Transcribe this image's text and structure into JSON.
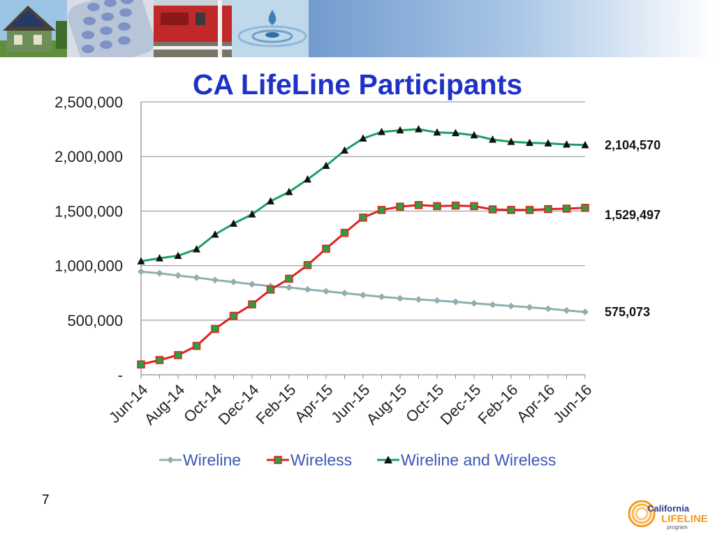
{
  "slide": {
    "page_number": "7"
  },
  "banner": {
    "photos": [
      "house-solar-photo",
      "phone-keypad-photo",
      "train-photo",
      "water-drop-photo"
    ]
  },
  "logo": {
    "line1": "California",
    "line2": "LIFELINE",
    "line3": "program"
  },
  "chart_data": {
    "type": "line",
    "title": "CA LifeLine Participants",
    "xlabel": "",
    "ylabel": "",
    "x": [
      "Jun-14",
      "Jul-14",
      "Aug-14",
      "Sep-14",
      "Oct-14",
      "Nov-14",
      "Dec-14",
      "Jan-15",
      "Feb-15",
      "Mar-15",
      "Apr-15",
      "May-15",
      "Jun-15",
      "Jul-15",
      "Aug-15",
      "Sep-15",
      "Oct-15",
      "Nov-15",
      "Dec-15",
      "Jan-16",
      "Feb-16",
      "Mar-16",
      "Apr-16",
      "May-16",
      "Jun-16"
    ],
    "x_tick_labels": [
      "Jun-14",
      "Aug-14",
      "Oct-14",
      "Dec-14",
      "Feb-15",
      "Apr-15",
      "Jun-15",
      "Aug-15",
      "Oct-15",
      "Dec-15",
      "Feb-16",
      "Apr-16",
      "Jun-16"
    ],
    "ylim": [
      0,
      2500000
    ],
    "y_ticks": [
      0,
      500000,
      1000000,
      1500000,
      2000000,
      2500000
    ],
    "y_tick_labels": [
      "-",
      "500,000",
      "1,000,000",
      "1,500,000",
      "2,000,000",
      "2,500,000"
    ],
    "grid": true,
    "legend_position": "bottom",
    "series": [
      {
        "name": "Wireline",
        "color": "#8fb0b0",
        "marker": "diamond",
        "values": [
          945000,
          930000,
          910000,
          890000,
          868000,
          850000,
          830000,
          812000,
          800000,
          782000,
          765000,
          748000,
          730000,
          715000,
          700000,
          690000,
          680000,
          668000,
          655000,
          642000,
          630000,
          618000,
          605000,
          590000,
          575073
        ],
        "end_label": "575,073"
      },
      {
        "name": "Wireless",
        "color": "#e02020",
        "marker": "square",
        "values": [
          95000,
          135000,
          180000,
          265000,
          420000,
          540000,
          645000,
          780000,
          880000,
          1005000,
          1155000,
          1300000,
          1440000,
          1510000,
          1540000,
          1555000,
          1545000,
          1550000,
          1545000,
          1515000,
          1510000,
          1510000,
          1518000,
          1522000,
          1529497
        ],
        "end_label": "1,529,497"
      },
      {
        "name": "Wireline and Wireless",
        "color": "#1aa060",
        "marker": "triangle",
        "values": [
          1040000,
          1068000,
          1090000,
          1150000,
          1285000,
          1385000,
          1470000,
          1590000,
          1675000,
          1790000,
          1915000,
          2055000,
          2165000,
          2225000,
          2240000,
          2250000,
          2220000,
          2215000,
          2195000,
          2155000,
          2135000,
          2125000,
          2120000,
          2110000,
          2104570
        ],
        "end_label": "2,104,570"
      }
    ]
  }
}
